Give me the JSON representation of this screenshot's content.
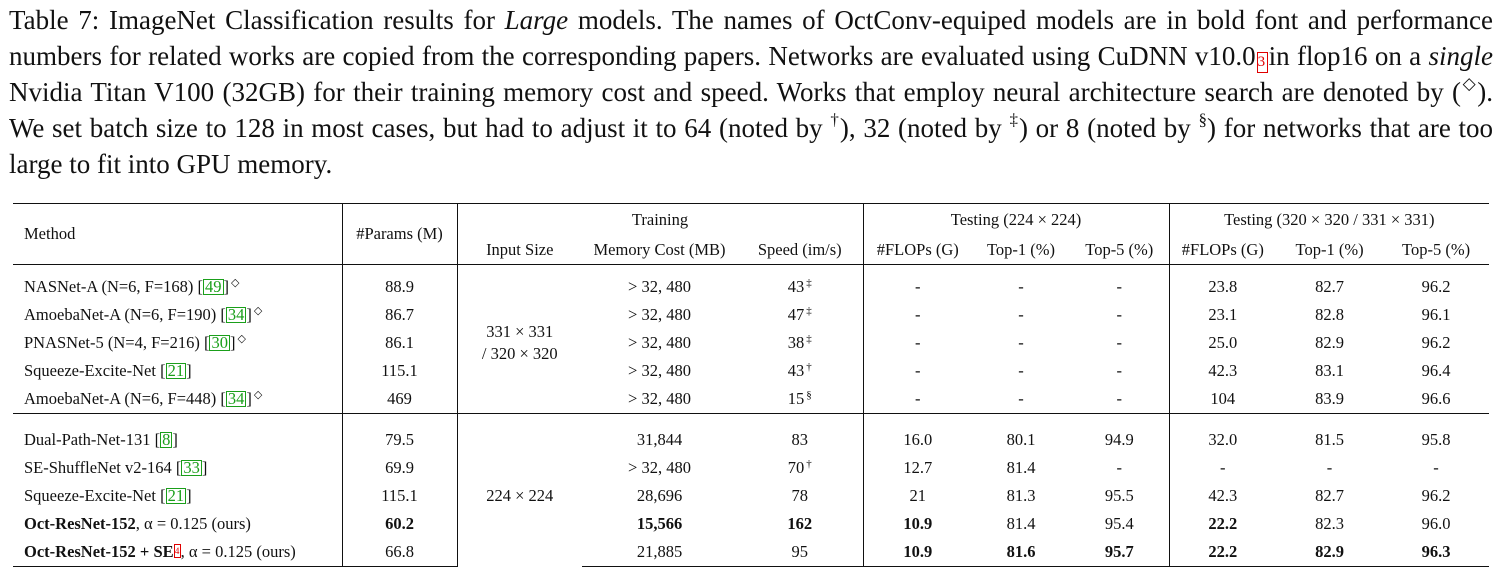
{
  "caption": {
    "label": "Table 7:",
    "text1": " ImageNet Classification results for ",
    "italic1": "Large",
    "text2": " models.  The names of OctConv-equiped models are in bold font and performance numbers for related works are copied from the corresponding papers.  Networks are evaluated using CuDNN v10.0",
    "footnote_mark": "3",
    "text3": "in flop16 on a ",
    "italic2": "single",
    "text4": " Nvidia Titan V100 (32GB) for their training memory cost and speed. Works that employ neural architecture search are denoted by (",
    "nas_symbol": "◇",
    "text5": ").  We set batch size to 128 in most cases, but had to adjust it to 64 (noted by ",
    "dagger": "†",
    "text6": "), 32 (noted by ",
    "ddagger": "‡",
    "text7": ") or 8 (noted by ",
    "section": "§",
    "text8": ") for networks that are too large to fit into GPU memory."
  },
  "headers": {
    "method": "Method",
    "params": "#Params (M)",
    "training": "Training",
    "testing224": "Testing (224 × 224)",
    "testing320": "Testing (320 × 320  / 331 × 331)",
    "input_size": "Input Size",
    "memory": "Memory Cost (MB)",
    "speed": "Speed (im/s)",
    "flops": "#FLOPs (G)",
    "top1": "Top-1 (%)",
    "top5": "Top-5 (%)"
  },
  "groups": [
    {
      "input_size_line1": "331 × 331",
      "input_size_line2": "/ 320 × 320",
      "rows": [
        {
          "name": "NASNet-A (N=6, F=168)",
          "ref": "49",
          "nas": "◇",
          "bold_name": false,
          "params": "88.9",
          "memory": "> 32, 480",
          "speed": "43",
          "speed_mark": "‡",
          "f224": "-",
          "t1_224": "-",
          "t5_224": "-",
          "f320": "23.8",
          "t1_320": "82.7",
          "t5_320": "96.2"
        },
        {
          "name": "AmoebaNet-A (N=6, F=190)",
          "ref": "34",
          "nas": "◇",
          "bold_name": false,
          "params": "86.7",
          "memory": "> 32, 480",
          "speed": "47",
          "speed_mark": "‡",
          "f224": "-",
          "t1_224": "-",
          "t5_224": "-",
          "f320": "23.1",
          "t1_320": "82.8",
          "t5_320": "96.1"
        },
        {
          "name": "PNASNet-5 (N=4, F=216)",
          "ref": "30",
          "nas": "◇",
          "bold_name": false,
          "params": "86.1",
          "memory": "> 32, 480",
          "speed": "38",
          "speed_mark": "‡",
          "f224": "-",
          "t1_224": "-",
          "t5_224": "-",
          "f320": "25.0",
          "t1_320": "82.9",
          "t5_320": "96.2"
        },
        {
          "name": "Squeeze-Excite-Net",
          "ref": "21",
          "nas": "",
          "bold_name": false,
          "params": "115.1",
          "memory": "> 32, 480",
          "speed": "43",
          "speed_mark": "†",
          "f224": "-",
          "t1_224": "-",
          "t5_224": "-",
          "f320": "42.3",
          "t1_320": "83.1",
          "t5_320": "96.4"
        },
        {
          "name": "AmoebaNet-A (N=6, F=448)",
          "ref": "34",
          "nas": "◇",
          "bold_name": false,
          "params": "469",
          "memory": "> 32, 480",
          "speed": "15",
          "speed_mark": "§",
          "f224": "-",
          "t1_224": "-",
          "t5_224": "-",
          "f320": "104",
          "t1_320": "83.9",
          "t5_320": "96.6"
        }
      ]
    },
    {
      "input_size_line1": "224 × 224",
      "input_size_line2": "",
      "rows": [
        {
          "name": "Dual-Path-Net-131",
          "ref": "8",
          "nas": "",
          "bold_name": false,
          "params": "79.5",
          "memory": "31,844",
          "speed": "83",
          "speed_mark": "",
          "f224": "16.0",
          "t1_224": "80.1",
          "t5_224": "94.9",
          "f320": "32.0",
          "t1_320": "81.5",
          "t5_320": "95.8"
        },
        {
          "name": "SE-ShuffleNet v2-164",
          "ref": "33",
          "nas": "",
          "bold_name": false,
          "params": "69.9",
          "memory": "> 32, 480",
          "speed": "70",
          "speed_mark": "†",
          "f224": "12.7",
          "t1_224": "81.4",
          "t5_224": "-",
          "f320": "-",
          "t1_320": "-",
          "t5_320": "-"
        },
        {
          "name": "Squeeze-Excite-Net",
          "ref": "21",
          "nas": "",
          "bold_name": false,
          "params": "115.1",
          "memory": "28,696",
          "speed": "78",
          "speed_mark": "",
          "f224": "21",
          "t1_224": "81.3",
          "t5_224": "95.5",
          "f320": "42.3",
          "t1_320": "82.7",
          "t5_320": "96.2"
        }
      ]
    }
  ],
  "ours": [
    {
      "name_bold": "Oct-ResNet-152",
      "footmark": "",
      "suffix": ", α = 0.125 (ours)",
      "params": "60.2",
      "memory": "15,566",
      "speed": "162",
      "f224": "10.9",
      "t1_224": "81.4",
      "t5_224": "95.4",
      "f320": "22.2",
      "t1_320": "82.3",
      "t5_320": "96.0",
      "bold": {
        "params": true,
        "memory": true,
        "speed": true,
        "f224": true,
        "t1_224": false,
        "t5_224": false,
        "f320": true,
        "t1_320": false,
        "t5_320": false
      }
    },
    {
      "name_bold": "Oct-ResNet-152 + SE",
      "footmark": "4",
      "suffix": ", α = 0.125 (ours)",
      "params": "66.8",
      "memory": "21,885",
      "speed": "95",
      "f224": "10.9",
      "t1_224": "81.6",
      "t5_224": "95.7",
      "f320": "22.2",
      "t1_320": "82.9",
      "t5_320": "96.3",
      "bold": {
        "params": false,
        "memory": false,
        "speed": false,
        "f224": true,
        "t1_224": true,
        "t5_224": true,
        "f320": true,
        "t1_320": true,
        "t5_320": true
      }
    }
  ]
}
